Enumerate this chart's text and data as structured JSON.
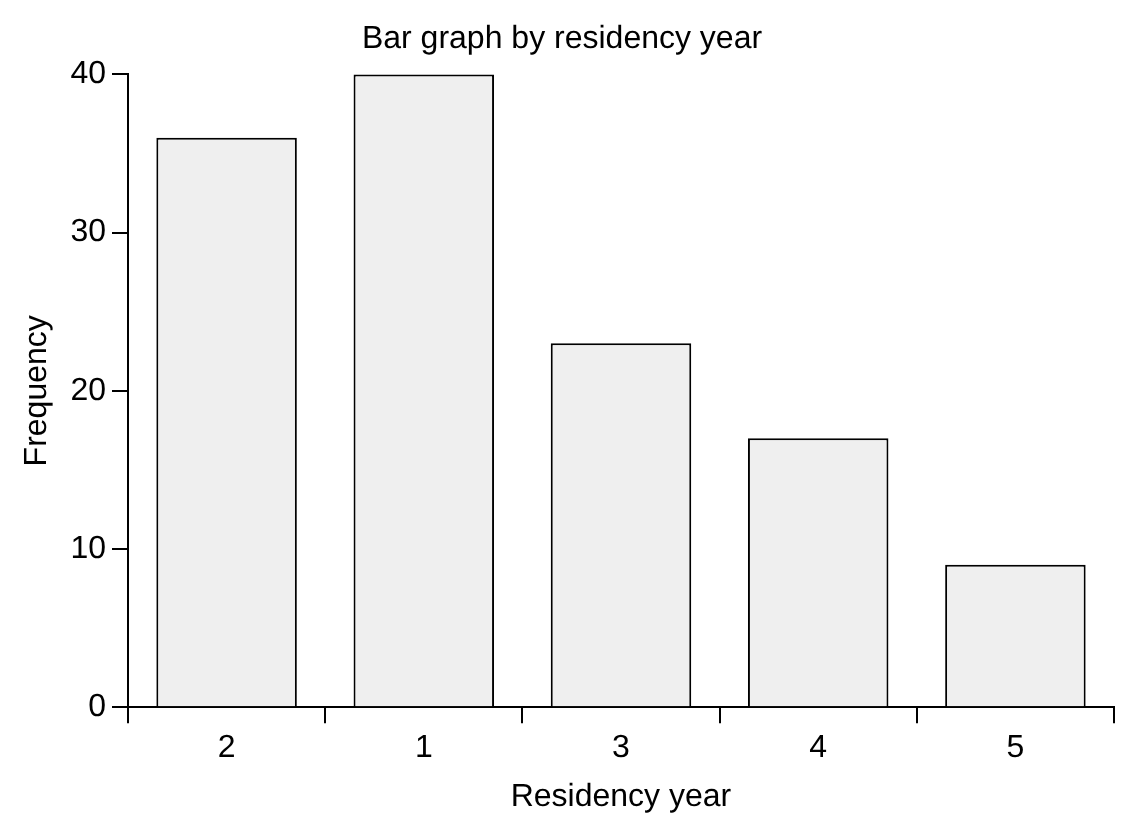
{
  "chart_data": {
    "type": "bar",
    "title": "Bar graph by residency year",
    "xlabel": "Residency year",
    "ylabel": "Frequency",
    "categories": [
      "2",
      "1",
      "3",
      "4",
      "5"
    ],
    "values": [
      36,
      40,
      23,
      17,
      9
    ],
    "color": "#efefef",
    "ylim": [
      0,
      40
    ],
    "yticks": [
      0,
      10,
      20,
      30,
      40
    ],
    "grid": false,
    "legend": false
  }
}
